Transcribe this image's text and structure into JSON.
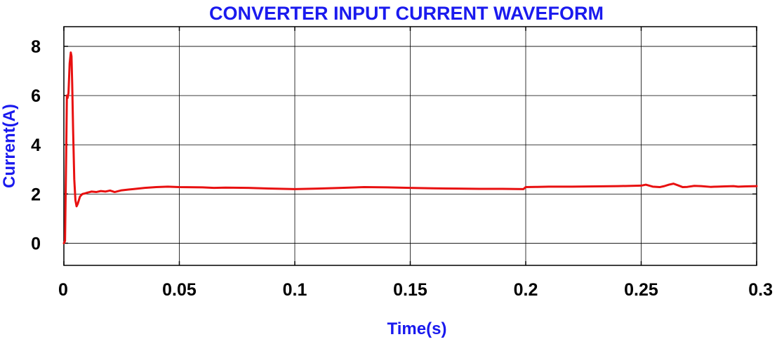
{
  "chart_data": {
    "type": "line",
    "title": "CONVERTER INPUT CURRENT WAVEFORM",
    "xlabel": "Time(s)",
    "ylabel": "Current(A)",
    "xlim": [
      0,
      0.3
    ],
    "ylim": [
      -0.9,
      8.8
    ],
    "grid": true,
    "xticks": [
      0,
      0.05,
      0.1,
      0.15,
      0.2,
      0.25,
      0.3
    ],
    "xtick_labels": [
      "0",
      "0.05",
      "0.1",
      "0.15",
      "0.2",
      "0.25",
      "0.3"
    ],
    "yticks": [
      0,
      2,
      4,
      6,
      8
    ],
    "ytick_labels": [
      "0",
      "2",
      "4",
      "6",
      "8"
    ],
    "series": [
      {
        "x": [
          0,
          0.0005,
          0.001,
          0.0013,
          0.0016,
          0.002,
          0.0025,
          0.003,
          0.0033,
          0.0036,
          0.004,
          0.0045,
          0.005,
          0.0055,
          0.006,
          0.007,
          0.008,
          0.009,
          0.01,
          0.012,
          0.014,
          0.016,
          0.018,
          0.02,
          0.022,
          0.025,
          0.028,
          0.03,
          0.035,
          0.04,
          0.045,
          0.05,
          0.06,
          0.065,
          0.07,
          0.08,
          0.09,
          0.1,
          0.11,
          0.12,
          0.13,
          0.14,
          0.15,
          0.16,
          0.17,
          0.18,
          0.19,
          0.199,
          0.2,
          0.205,
          0.21,
          0.22,
          0.23,
          0.24,
          0.25,
          0.252,
          0.255,
          0.258,
          0.26,
          0.262,
          0.264,
          0.266,
          0.268,
          0.27,
          0.273,
          0.276,
          0.28,
          0.283,
          0.286,
          0.29,
          0.292,
          0.295,
          0.3
        ],
        "values": [
          0,
          0.1,
          3.6,
          6.0,
          5.9,
          6.1,
          7.3,
          7.75,
          7.6,
          6.5,
          4.6,
          2.6,
          1.75,
          1.5,
          1.6,
          1.9,
          2.0,
          2.02,
          2.05,
          2.1,
          2.08,
          2.12,
          2.1,
          2.14,
          2.08,
          2.15,
          2.18,
          2.2,
          2.25,
          2.28,
          2.3,
          2.28,
          2.27,
          2.25,
          2.26,
          2.25,
          2.22,
          2.2,
          2.22,
          2.25,
          2.28,
          2.27,
          2.25,
          2.23,
          2.22,
          2.21,
          2.21,
          2.2,
          2.28,
          2.29,
          2.3,
          2.3,
          2.31,
          2.32,
          2.34,
          2.38,
          2.3,
          2.28,
          2.32,
          2.38,
          2.42,
          2.35,
          2.28,
          2.29,
          2.33,
          2.32,
          2.29,
          2.3,
          2.31,
          2.32,
          2.3,
          2.31,
          2.32
        ],
        "color": "#e81010"
      }
    ],
    "colors": {
      "title": "#1a1aee",
      "axis_label": "#1a1aee",
      "line": "#e81010",
      "grid": "#000000"
    }
  }
}
